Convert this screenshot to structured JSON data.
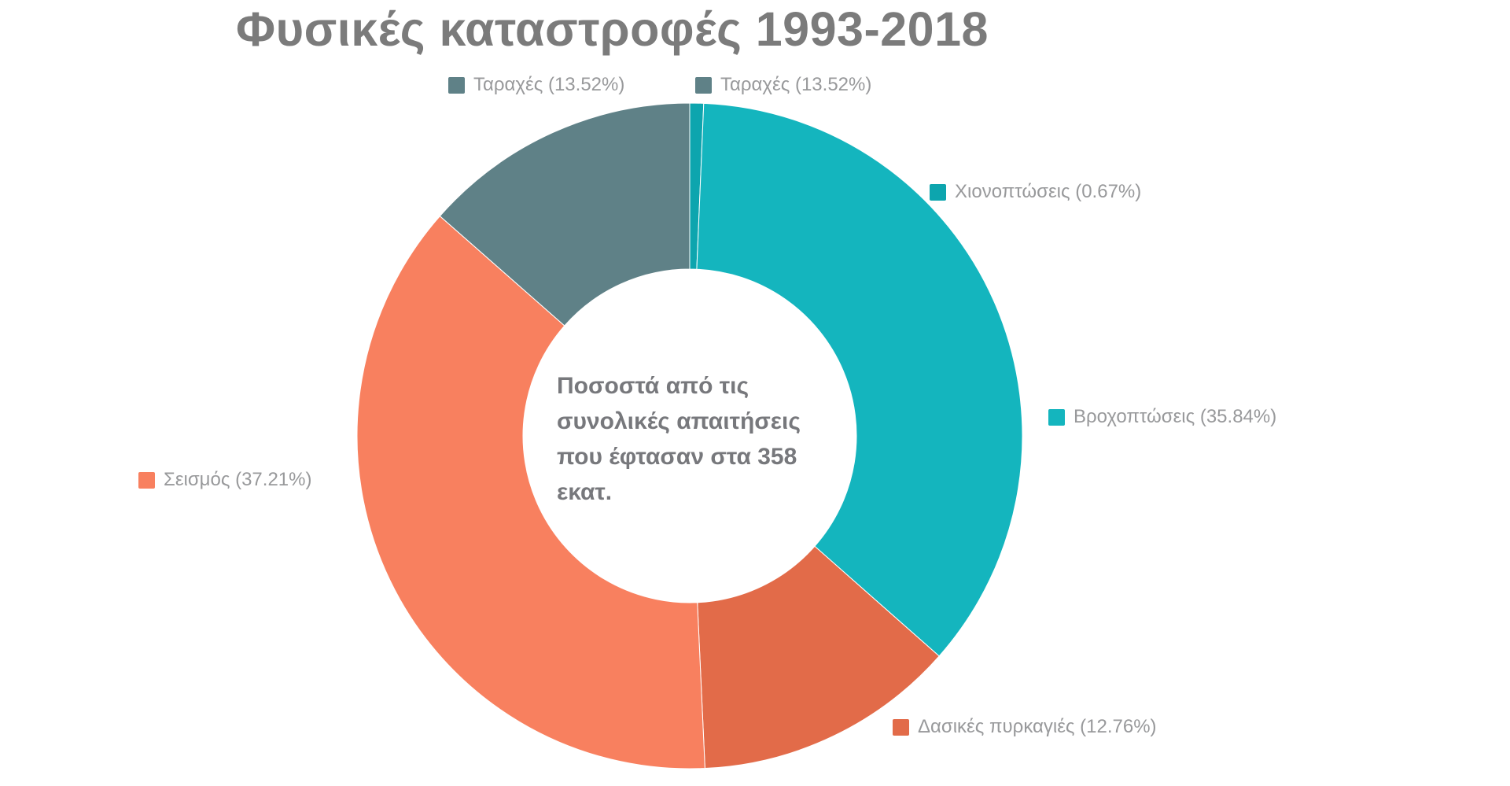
{
  "title": "Φυσικές καταστροφές 1993-2018",
  "center_text": {
    "full": "Ποσοστά από τις συνολικές απαιτήσεις που έφτασαν στα 358 εκατ.",
    "lines": [
      "Ποσοστά από τις",
      "συνολικές απαιτήσεις",
      "που έφτασαν στα 358",
      "εκατ."
    ]
  },
  "labels": [
    {
      "text": "Ταραχές (13.52%)",
      "color": "#5f8187"
    },
    {
      "text": "Ταραχές (13.52%)",
      "color": "#5f8187"
    },
    {
      "text": "Χιονοπτώσεις (0.67%)",
      "color": "#0da5ae"
    },
    {
      "text": "Βροχοπτώσεις (35.84%)",
      "color": "#14b5be"
    },
    {
      "text": "Σεισμός (37.21%)",
      "color": "#f8805f"
    },
    {
      "text": "Δασικές πυρκαγιές (12.76%)",
      "color": "#e26b49"
    }
  ],
  "chart_data": {
    "type": "pie",
    "subtype": "donut",
    "title": "Φυσικές καταστροφές 1993-2018",
    "start_angle_deg": 0,
    "direction": "clockwise",
    "inner_radius_ratio": 0.5,
    "categories": [
      "Χιονοπτώσεις",
      "Βροχοπτώσεις",
      "Δασικές πυρκαγιές",
      "Σεισμός",
      "Ταραχές"
    ],
    "values": [
      0.67,
      35.84,
      12.76,
      37.21,
      13.52
    ],
    "colors": [
      "#0da5ae",
      "#14b5be",
      "#e26b49",
      "#f8805f",
      "#5f8187"
    ],
    "center_label": "Ποσοστά από τις συνολικές απαιτήσεις που έφτασαν στα 358 εκατ.",
    "center_total_note": "358 εκατ.",
    "legend_position": "callouts-around-chart",
    "units": "percent"
  }
}
